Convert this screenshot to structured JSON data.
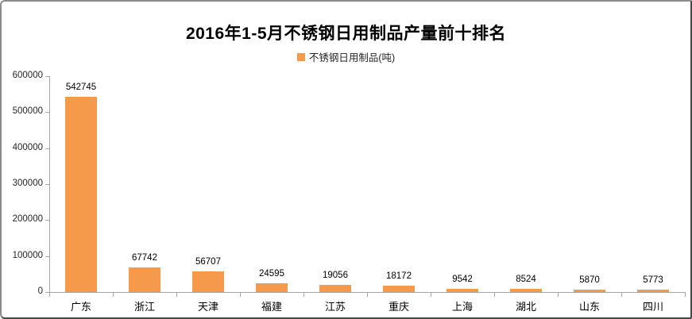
{
  "chart_data": {
    "type": "bar",
    "title": "2016年1-5月不锈钢日用制品产量前十排名",
    "legend": "不锈钢日用制品(吨)",
    "legend_position": "top",
    "categories": [
      "广东",
      "浙江",
      "天津",
      "福建",
      "江苏",
      "重庆",
      "上海",
      "湖北",
      "山东",
      "四川"
    ],
    "values": [
      542745,
      67742,
      56707,
      24595,
      19056,
      18172,
      9542,
      8524,
      5870,
      5773
    ],
    "xlabel": "",
    "ylabel": "",
    "ylim": [
      0,
      600000
    ],
    "ytick_interval": 100000,
    "ytick_labels": [
      "0",
      "100000",
      "200000",
      "300000",
      "400000",
      "500000",
      "600000"
    ],
    "grid": false,
    "data_labels": true,
    "colors": {
      "bar": "#f49a4a",
      "axis": "#a6a6a6",
      "title_text": "#000000",
      "tick_text": "#262626",
      "frame_border": "#8c8c8c",
      "background": "#ffffff"
    }
  }
}
